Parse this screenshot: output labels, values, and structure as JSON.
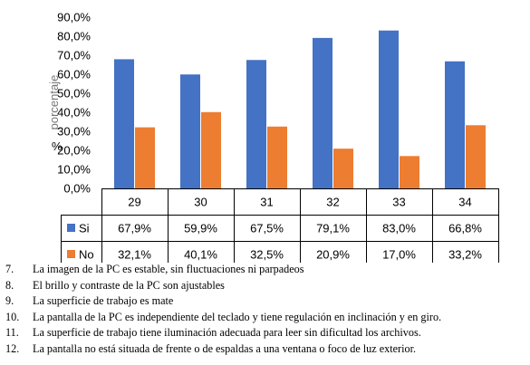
{
  "chart_data": {
    "type": "bar",
    "categories": [
      "29",
      "30",
      "31",
      "32",
      "33",
      "34"
    ],
    "series": [
      {
        "name": "Si",
        "values": [
          67.9,
          59.9,
          67.5,
          79.1,
          83.0,
          66.8
        ],
        "labels": [
          "67,9%",
          "59,9%",
          "67,5%",
          "79,1%",
          "83,0%",
          "66,8%"
        ],
        "color": "#4472C4"
      },
      {
        "name": "No",
        "values": [
          32.1,
          40.1,
          32.5,
          20.9,
          17.0,
          33.2
        ],
        "labels": [
          "32,1%",
          "40,1%",
          "32,5%",
          "20,9%",
          "17,0%",
          "33,2%"
        ],
        "color": "#ED7D31"
      }
    ],
    "ylim": [
      0,
      90
    ],
    "yticks": [
      "0,0%",
      "10,0%",
      "20,0%",
      "30,0%",
      "40,0%",
      "50,0%",
      "60,0%",
      "70,0%",
      "80,0%",
      "90,0%"
    ],
    "ylabel": "%",
    "ylabel_obscured": "porcentaje",
    "legend": "data-table",
    "grid": false
  },
  "notes": [
    {
      "num": "7.",
      "text": "La imagen de la PC es estable, sin fluctuaciones ni parpadeos"
    },
    {
      "num": "8.",
      "text": "El brillo y contraste de la PC son ajustables"
    },
    {
      "num": "9.",
      "text": "La superficie de trabajo es mate"
    },
    {
      "num": "10.",
      "text": "La pantalla de la PC es independiente del teclado y tiene regulación en inclinación y en giro."
    },
    {
      "num": "11.",
      "text": "La superficie de trabajo tiene iluminación adecuada para leer sin dificultad los archivos."
    },
    {
      "num": "12.",
      "text": "La pantalla no está situada de frente o de espaldas a una ventana o foco de luz exterior."
    }
  ]
}
